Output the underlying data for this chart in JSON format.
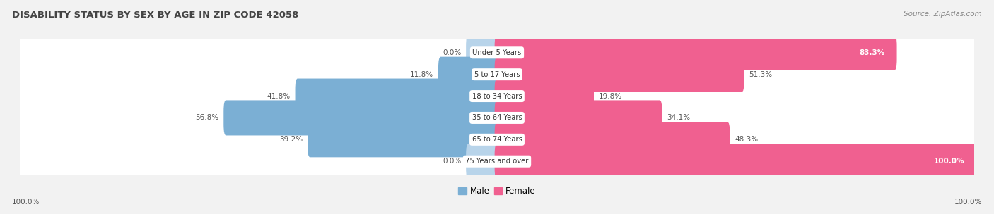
{
  "title": "DISABILITY STATUS BY SEX BY AGE IN ZIP CODE 42058",
  "source": "Source: ZipAtlas.com",
  "categories": [
    "Under 5 Years",
    "5 to 17 Years",
    "18 to 34 Years",
    "35 to 64 Years",
    "65 to 74 Years",
    "75 Years and over"
  ],
  "male_values": [
    0.0,
    11.8,
    41.8,
    56.8,
    39.2,
    0.0
  ],
  "female_values": [
    83.3,
    51.3,
    19.8,
    34.1,
    48.3,
    100.0
  ],
  "male_color": "#7bafd4",
  "female_color": "#f06090",
  "male_light_color": "#b8d4ea",
  "female_light_color": "#f0b0c8",
  "bg_color": "#f2f2f2",
  "row_bg_color": "#e4e4e4",
  "title_color": "#444444",
  "source_color": "#888888",
  "label_color_dark": "#555555",
  "label_color_white": "#ffffff",
  "center_label_color": "#333333",
  "max_val": 100.0,
  "legend_male": "Male",
  "legend_female": "Female",
  "female_inside_threshold": 60.0,
  "male_inside_threshold": 60.0
}
